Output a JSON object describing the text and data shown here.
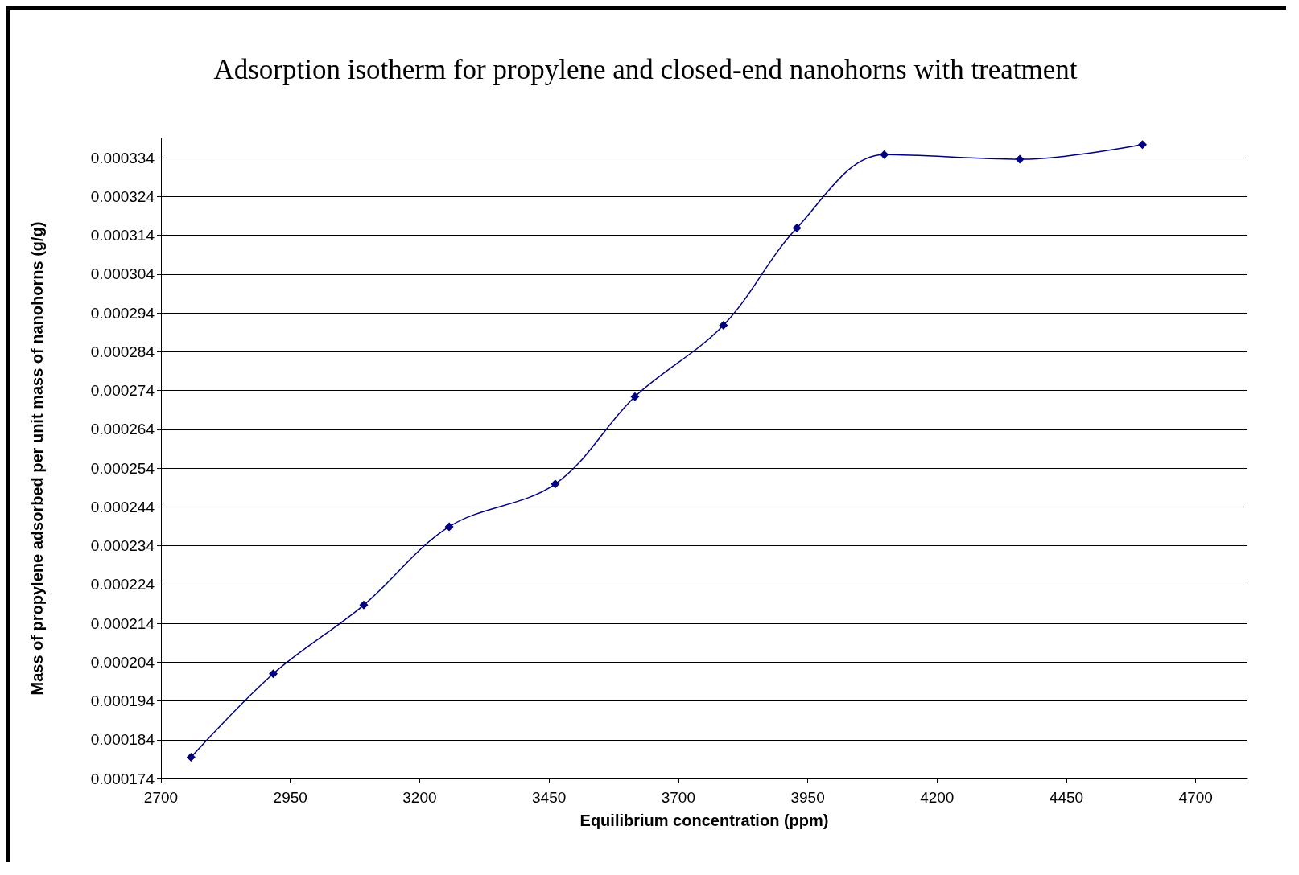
{
  "chart_data": {
    "type": "line",
    "title": "Adsorption isotherm for propylene and closed-end nanohorns with treatment",
    "xlabel": "Equilibrium concentration (ppm)",
    "ylabel": "Mass of propylene adsorbed per unit mass of nanohorns (g/g)",
    "x": [
      2758,
      2917,
      3092,
      3257,
      3462,
      3616,
      3787,
      3929,
      4098,
      4360,
      4597
    ],
    "series": [
      {
        "color": "#000080",
        "values": [
          0.0001795,
          0.000201,
          0.0002187,
          0.0002389,
          0.0002499,
          0.0002724,
          0.0002908,
          0.0003159,
          0.0003348,
          0.0003336,
          0.0003374
        ]
      }
    ],
    "xlim": [
      2700,
      4800
    ],
    "xticks": [
      2700,
      2950,
      3200,
      3450,
      3700,
      3950,
      4200,
      4450,
      4700
    ],
    "ylim": [
      0.000174,
      0.000339
    ],
    "yticks": [
      0.000174,
      0.000184,
      0.000194,
      0.000204,
      0.000214,
      0.000224,
      0.000234,
      0.000244,
      0.000254,
      0.000264,
      0.000274,
      0.000284,
      0.000294,
      0.000304,
      0.000314,
      0.000324,
      0.000334
    ],
    "grid": "y",
    "marker": "diamond",
    "line_style": "solid"
  }
}
